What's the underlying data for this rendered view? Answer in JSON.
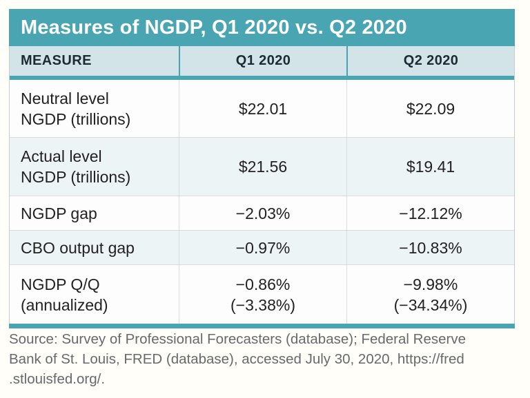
{
  "title": "Measures of NGDP, Q1 2020 vs. Q2 2020",
  "table": {
    "columns": [
      "MEASURE",
      "Q1 2020",
      "Q2 2020"
    ],
    "rows": [
      {
        "measure": "Neutral level\nNGDP (trillions)",
        "q1": "$22.01",
        "q2": "$22.09"
      },
      {
        "measure": "Actual level\nNGDP (trillions)",
        "q1": "$21.56",
        "q2": "$19.41"
      },
      {
        "measure": "NGDP gap",
        "q1": "−2.03%",
        "q2": "−12.12%"
      },
      {
        "measure": "CBO output gap",
        "q1": "−0.97%",
        "q2": "−10.83%"
      },
      {
        "measure": "NGDP Q/Q\n(annualized)",
        "q1": "−0.86%\n(−3.38%)",
        "q2": "−9.98%\n(−34.34%)"
      }
    ]
  },
  "source": {
    "lines": [
      "Source: Survey of Professional Forecasters (database); Federal Reserve",
      "Bank of St. Louis, FRED (database), accessed July 30, 2020, https://fred",
      ".stlouisfed.org/."
    ]
  },
  "colors": {
    "accent_teal": "#48a5b1",
    "header_bg": "#d3e4e9",
    "alt_row_bg": "#edf4f6",
    "body_text": "#232021",
    "source_text": "#66696d"
  },
  "chart_data": {
    "type": "table",
    "title": "Measures of NGDP, Q1 2020 vs. Q2 2020",
    "columns": [
      "MEASURE",
      "Q1 2020",
      "Q2 2020"
    ],
    "rows": [
      [
        "Neutral level NGDP (trillions)",
        "$22.01",
        "$22.09"
      ],
      [
        "Actual level NGDP (trillions)",
        "$21.56",
        "$19.41"
      ],
      [
        "NGDP gap",
        "−2.03%",
        "−12.12%"
      ],
      [
        "CBO output gap",
        "−0.97%",
        "−10.83%"
      ],
      [
        "NGDP Q/Q (annualized)",
        "−0.86% (−3.38%)",
        "−9.98% (−34.34%)"
      ]
    ],
    "source": "Source: Survey of Professional Forecasters (database); Federal Reserve Bank of St. Louis, FRED (database), accessed July 30, 2020, https://fred.stlouisfed.org/."
  }
}
